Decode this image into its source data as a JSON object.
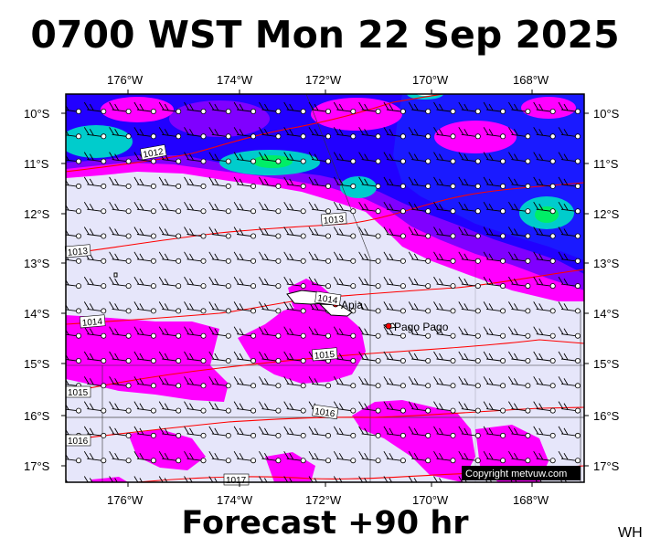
{
  "header": {
    "title": "0700 WST Mon 22 Sep 2025"
  },
  "footer": {
    "forecast_label": "Forecast +90 hr",
    "corner_code": "WH"
  },
  "axes": {
    "longitude_ticks": [
      "176°W",
      "174°W",
      "172°W",
      "170°W",
      "168°W"
    ],
    "latitude_ticks": [
      "10°S",
      "11°S",
      "12°S",
      "13°S",
      "14°S",
      "15°S",
      "16°S",
      "17°S"
    ]
  },
  "places": [
    {
      "name": "Apia",
      "marker_color": "#ff0000"
    },
    {
      "name": "Pago Pago",
      "marker_color": "#ff0000"
    }
  ],
  "isobar_labels": [
    "1012",
    "1013",
    "1013",
    "1014",
    "1014",
    "1015",
    "1015",
    "1016",
    "1016",
    "1017"
  ],
  "copyright": "Copyright metvuw.com",
  "colors": {
    "background_shading": "#e6e6fa",
    "magenta": "#ff00ff",
    "violet": "#8000ff",
    "blue": "#1a1aff",
    "cyan": "#00dddd",
    "green": "#00ee66",
    "isobar": "#ff0000",
    "coast": "#000000"
  }
}
